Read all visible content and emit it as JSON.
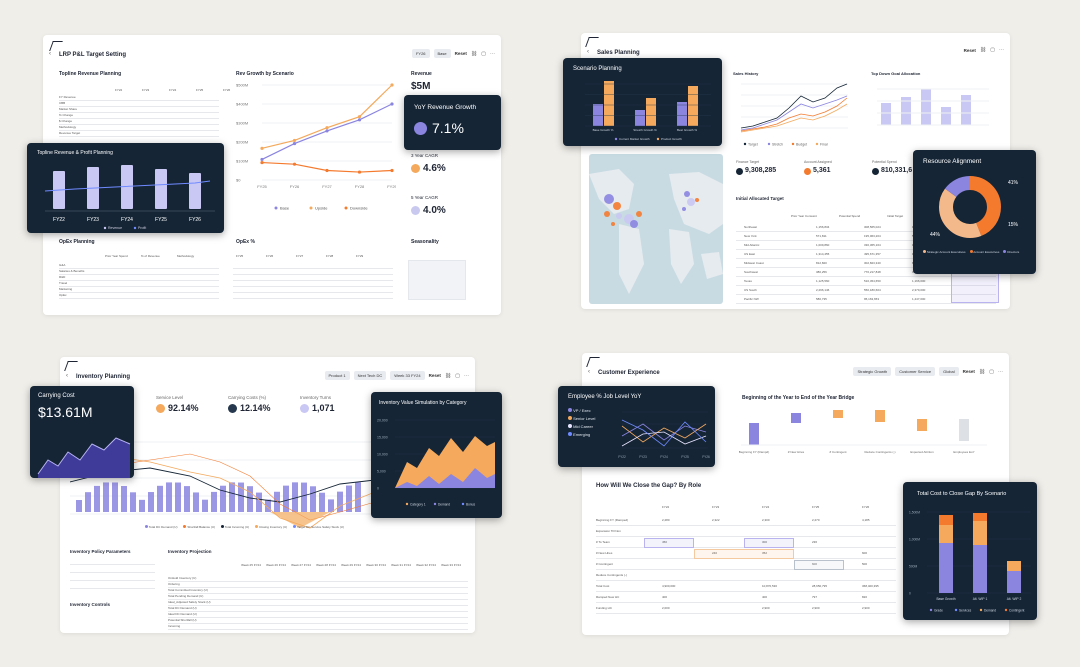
{
  "p1": {
    "title": "LRP P&L Target Setting",
    "pills": [
      "FY26",
      "Base"
    ],
    "reset": "Reset",
    "topline": {
      "title": "Topline Revenue Planning",
      "cols": [
        "FY22",
        "FY23",
        "FY24",
        "FY25",
        "FY26"
      ],
      "rows": [
        "FY Revenue",
        "CBB",
        "Market Share",
        "% Change",
        "$ Change",
        "Methodology",
        "Revenue Target"
      ]
    },
    "revgrowth": {
      "title": "Rev Growth by Scenario",
      "yticks": [
        "$500M",
        "$400M",
        "$300M",
        "$200M",
        "$100M",
        "$0"
      ],
      "xticks": [
        "FY25",
        "FY26",
        "FY27",
        "FY28",
        "FY29"
      ],
      "legend": [
        "Base",
        "Upside",
        "Downside"
      ],
      "series": [
        {
          "name": "Base",
          "color": "#8b85e0",
          "values": [
            130,
            230,
            310,
            380,
            480
          ]
        },
        {
          "name": "Upside",
          "color": "#f4a95c",
          "values": [
            200,
            250,
            330,
            400,
            600
          ]
        },
        {
          "name": "Downside",
          "color": "#f47a2e",
          "values": [
            110,
            100,
            60,
            50,
            60
          ]
        }
      ],
      "ylim": [
        0,
        600
      ]
    },
    "revenue": {
      "title": "Revenue",
      "value": "$5M"
    },
    "yoy": {
      "title": "YoY Revenue Growth",
      "value": "7.1%"
    },
    "cagr3": {
      "title": "3 Year CAGR",
      "value": "4.6%"
    },
    "cagr5": {
      "title": "5 Year CAGR",
      "value": "4.0%"
    },
    "topline_chart": {
      "title": "Topline Revenue & Profit Planning",
      "categories": [
        "FY22",
        "FY23",
        "FY24",
        "FY25",
        "FY26"
      ],
      "legend": [
        "Revenue",
        "Profit"
      ]
    },
    "opex": {
      "title": "OpEx Planning",
      "cols": [
        "Prior Year Spend",
        "% of Revenue",
        "Methodology"
      ],
      "rows": [
        "G&A",
        "Salaries & Benefits",
        "R&D",
        "Travel",
        "Marketing",
        "OpEx"
      ]
    },
    "opexpct": {
      "title": "OpEx %",
      "cols": [
        "FY25",
        "FY26",
        "FY27",
        "FY28",
        "FY29"
      ]
    },
    "seasonality": {
      "title": "Seasonality"
    }
  },
  "p2": {
    "title": "Sales Planning",
    "reset": "Reset",
    "scenario": {
      "title": "Scenario Planning",
      "categories": [
        "Base Growth %",
        "Stretch Growth %",
        "Best Growth %"
      ],
      "legend": [
        "Current Market Growth",
        "Product Growth"
      ]
    },
    "saleshist": {
      "title": "Sales History",
      "legend": [
        "Target",
        "Stretch",
        "Budget",
        "Final"
      ]
    },
    "topdown": {
      "title": "Top Down Goal Allocation"
    },
    "kpis": [
      {
        "label": "Finance Target",
        "value": "9,308,285",
        "color": "#152536"
      },
      {
        "label": "Account Assigned",
        "value": "5,361",
        "color": "#f47a2e"
      },
      {
        "label": "Potential Spend",
        "value": "810,331,6",
        "color": "#152536"
      }
    ],
    "alloc": {
      "title": "Initial Allocated Target",
      "cols": [
        "Prior Year Consumt",
        "Potential Spend",
        "Initial Target"
      ],
      "rows": [
        [
          "Northeast",
          "1,156,834",
          "308,565,024",
          "1,198,000"
        ],
        [
          "New York",
          "571,811",
          "195,063,204",
          "592,000"
        ],
        [
          "Mid Atlantic",
          "1,009,860",
          "330,365,164",
          "1,046,000"
        ],
        [
          "US East",
          "1,314,455",
          "495,671,357",
          "1,362,000"
        ],
        [
          "Midwest Coast",
          "812,820",
          "302,823,340",
          "842,000"
        ],
        [
          "Southwest",
          "380,256",
          "770,217,848",
          "394,000"
        ],
        [
          "Texas",
          "1,125,560",
          "510,454,650",
          "1,166,000"
        ],
        [
          "US South",
          "2,296,146",
          "550,180,604",
          "2,379,000"
        ],
        [
          "Pacific NW",
          "580,735",
          "95,163,653",
          "1,447,000"
        ]
      ]
    },
    "resource": {
      "title": "Resource Alignment",
      "pct_top": "41%",
      "pct_right": "15%",
      "pct_left": "44%",
      "legend": [
        "Strategic Account Executives",
        "Account Executives",
        "Directors"
      ]
    }
  },
  "p3": {
    "title": "Inventory Planning",
    "pills": [
      "Product 1",
      "Next Tech DC",
      "Week 33 FY24"
    ],
    "reset": "Reset",
    "carrying": {
      "title": "Carrying Cost",
      "value": "$13.61M"
    },
    "kpis": [
      {
        "label": "Service Level",
        "value": "92.14%"
      },
      {
        "label": "Carrying Costs (%)",
        "value": "12.14%"
      },
      {
        "label": "Inventory Turns",
        "value": "1,071"
      }
    ],
    "invsim": {
      "title": "Inventory Value Simulation by Category",
      "yticks": [
        "20,000",
        "15,000",
        "10,000",
        "5,000",
        "0"
      ],
      "legend": [
        "Category 1",
        "Demand",
        "Bonus"
      ]
    },
    "chart_legend": [
      "Total DC Demand (U)",
      "Shortfall Balance (U)",
      "Total Incoming (U)",
      "Closing Inventory (U)",
      "Target DC Service Safety Stock (U)"
    ],
    "policy": {
      "title": "Inventory Policy Parameters"
    },
    "projection": {
      "title": "Inventory Projection",
      "cols": [
        "Week 25 FY24",
        "Week 26 FY24",
        "Week 27 FY24",
        "Week 28 FY24",
        "Week 29 FY24",
        "Week 30 FY24",
        "Week 31 FY24",
        "Week 32 FY24",
        "Week 33 FY24"
      ],
      "rows": [
        "OnHold Inventory (U)",
        "Ordering",
        "Total Committed Inventory (U)",
        "Total Pending Demand (U)",
        "Ideal_Adjusted Safety Stock (U)",
        "Total DC Demand (U)",
        "Ideal DC Demand (U)",
        "Potential Shortfall (U)",
        "Incoming"
      ]
    },
    "controls": {
      "title": "Inventory Controls"
    }
  },
  "p4": {
    "title": "Customer Experience",
    "pills": [
      "Strategic Growth",
      "Customer Service",
      "Global"
    ],
    "reset": "Reset",
    "employee": {
      "title": "Employee % Job Level YoY",
      "legend": [
        "VP / Exec",
        "Senior Level",
        "Mid Career",
        "Emerging"
      ],
      "xticks": [
        "FY22",
        "FY23",
        "FY24",
        "FY25",
        "FY26"
      ]
    },
    "bridge": {
      "title": "Beginning of the Year to End of the Year Bridge",
      "categories": [
        "Beginning FY (Rampd)",
        "# New Hires",
        "# Contingent",
        "Reduce Contingents (-)",
        "Expected Attrition",
        "Employees EoY"
      ]
    },
    "gap": {
      "title": "How Will We Close the Gap? By Role",
      "cols": [
        "FY22",
        "FY23",
        "FY24",
        "FY25",
        "FY26"
      ],
      "rows": [
        [
          "Beginning FY (Ramped)",
          "2,280",
          "2,322",
          "2,300",
          "2,270",
          "4,185"
        ],
        [
          "Expansion Till Non",
          "",
          "",
          "",
          "",
          ""
        ],
        [
          "# To Team",
          "450",
          "",
          "300",
          "236",
          ""
        ],
        [
          "# New Hires",
          "",
          "240",
          "352",
          "",
          "600"
        ],
        [
          "# Contingent",
          "",
          "",
          "",
          "600",
          "500"
        ],
        [
          "Reduce Contingents (-)",
          "",
          "",
          "",
          "",
          ""
        ],
        [
          "Total Cost",
          "4,900,000",
          "",
          "10,870,530",
          "28,650,795",
          "368,400,395"
        ],
        [
          "Ramped New HC",
          "400",
          "",
          "400",
          "797",
          "820"
        ],
        [
          "Funding HC",
          "2,000",
          "",
          "2,900",
          "2,900",
          "2,900"
        ]
      ]
    },
    "totalcost": {
      "title": "Total Cost to Close Gap By Scenario",
      "categories": [
        "Base Growth",
        "Alt. WIP 1",
        "Alt. WIP 2"
      ],
      "yticks": [
        "1,500M",
        "1,000M",
        "500M",
        "0"
      ],
      "legend": [
        "Grade",
        "Services",
        "Demand",
        "Contingent"
      ]
    }
  }
}
